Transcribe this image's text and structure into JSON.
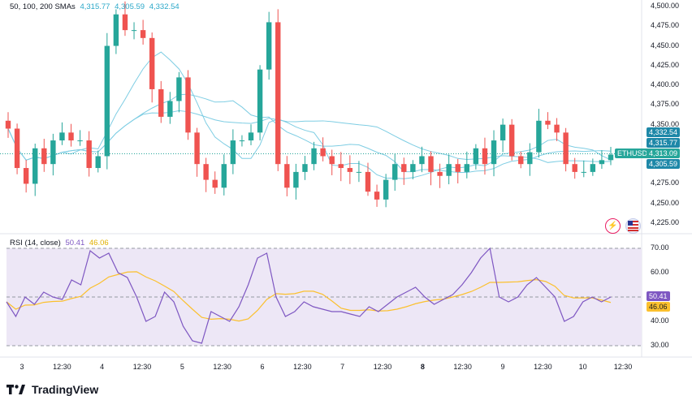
{
  "main_legend": {
    "text": "50, 100, 200 SMAs",
    "v1": "4,315.77",
    "v2": "4,305.59",
    "v3": "4,332.54"
  },
  "rsi_legend": {
    "text": "RSI (14, close)",
    "v1": "50.41",
    "v2": "46.06"
  },
  "price_axis": [
    "4,500.00",
    "4,475.00",
    "4,450.00",
    "4,425.00",
    "4,400.00",
    "4,375.00",
    "4,350.00",
    "4,325.00",
    "4,300.00",
    "4,275.00",
    "4,250.00",
    "4,225.00"
  ],
  "rsi_axis": [
    "70.00",
    "60.00",
    "40.00",
    "30.00"
  ],
  "x_axis": [
    {
      "label": "3",
      "bold": false
    },
    {
      "label": "12:30",
      "bold": false
    },
    {
      "label": "4",
      "bold": false
    },
    {
      "label": "12:30",
      "bold": false
    },
    {
      "label": "5",
      "bold": false
    },
    {
      "label": "12:30",
      "bold": false
    },
    {
      "label": "6",
      "bold": false
    },
    {
      "label": "12:30",
      "bold": false
    },
    {
      "label": "7",
      "bold": false
    },
    {
      "label": "12:30",
      "bold": false
    },
    {
      "label": "8",
      "bold": true
    },
    {
      "label": "12:30",
      "bold": false
    },
    {
      "label": "9",
      "bold": false
    },
    {
      "label": "12:30",
      "bold": false
    },
    {
      "label": "10",
      "bold": false
    },
    {
      "label": "12:30",
      "bold": false
    }
  ],
  "price_badges": {
    "symbol": "ETHUSD",
    "last": "4,313.09",
    "sma200": "4,332.54",
    "sma50": "4,315.77",
    "sma100": "4,305.59"
  },
  "rsi_badges": {
    "rsi": "50.41",
    "ma": "46.06"
  },
  "brand": {
    "name": "TradingView"
  },
  "icons": {
    "flash": "lightning-icon",
    "flag": "us-flag-icon"
  },
  "colors": {
    "up": "#26a69a",
    "down": "#ef5350",
    "sma": "#7ecde3",
    "rsi": "#7e57c2",
    "rsi_ma": "#fbc02d",
    "rsi_band": "#ede7f6",
    "badge_dark": "#1e88a8"
  },
  "chart_data": [
    {
      "type": "candlestick",
      "symbol": "ETHUSD",
      "ylim": [
        4225,
        4500
      ],
      "y_ticks": [
        4225,
        4250,
        4275,
        4300,
        4325,
        4350,
        4375,
        4400,
        4425,
        4450,
        4475,
        4500
      ],
      "last_price": 4313.09,
      "sma": [
        {
          "name": "50",
          "value": 4315.77
        },
        {
          "name": "100",
          "value": 4305.59
        },
        {
          "name": "200",
          "value": 4332.54
        }
      ],
      "close_path": [
        4345,
        4295,
        4275,
        4320,
        4300,
        4330,
        4340,
        4330,
        4330,
        4295,
        4310,
        4450,
        4490,
        4470,
        4470,
        4460,
        4395,
        4360,
        4380,
        4410,
        4340,
        4300,
        4280,
        4270,
        4300,
        4330,
        4330,
        4340,
        4420,
        4480,
        4300,
        4270,
        4290,
        4300,
        4320,
        4310,
        4300,
        4295,
        4290,
        4290,
        4265,
        4255,
        4280,
        4300,
        4290,
        4300,
        4310,
        4290,
        4285,
        4300,
        4290,
        4300,
        4320,
        4300,
        4330,
        4350,
        4310,
        4300,
        4315,
        4355,
        4350,
        4340,
        4300,
        4290,
        4290,
        4300,
        4305,
        4312
      ]
    },
    {
      "type": "line",
      "name": "RSI",
      "ylim": [
        30,
        70
      ],
      "y_ticks": [
        30,
        40,
        50,
        60,
        70
      ],
      "rsi_last": 50.41,
      "ma_last": 46.06,
      "rsi_path": [
        48,
        42,
        50,
        47,
        52,
        50,
        49,
        57,
        55,
        69,
        66,
        68,
        60,
        58,
        50,
        40,
        42,
        52,
        48,
        38,
        32,
        31,
        44,
        42,
        40,
        46,
        55,
        66,
        68,
        50,
        42,
        44,
        48,
        46,
        45,
        44,
        44,
        43,
        42,
        46,
        44,
        47,
        50,
        52,
        54,
        50,
        47,
        49,
        51,
        55,
        60,
        66,
        70,
        50,
        48,
        50,
        55,
        58,
        54,
        50,
        40,
        42,
        48,
        50,
        48,
        50
      ]
    }
  ]
}
